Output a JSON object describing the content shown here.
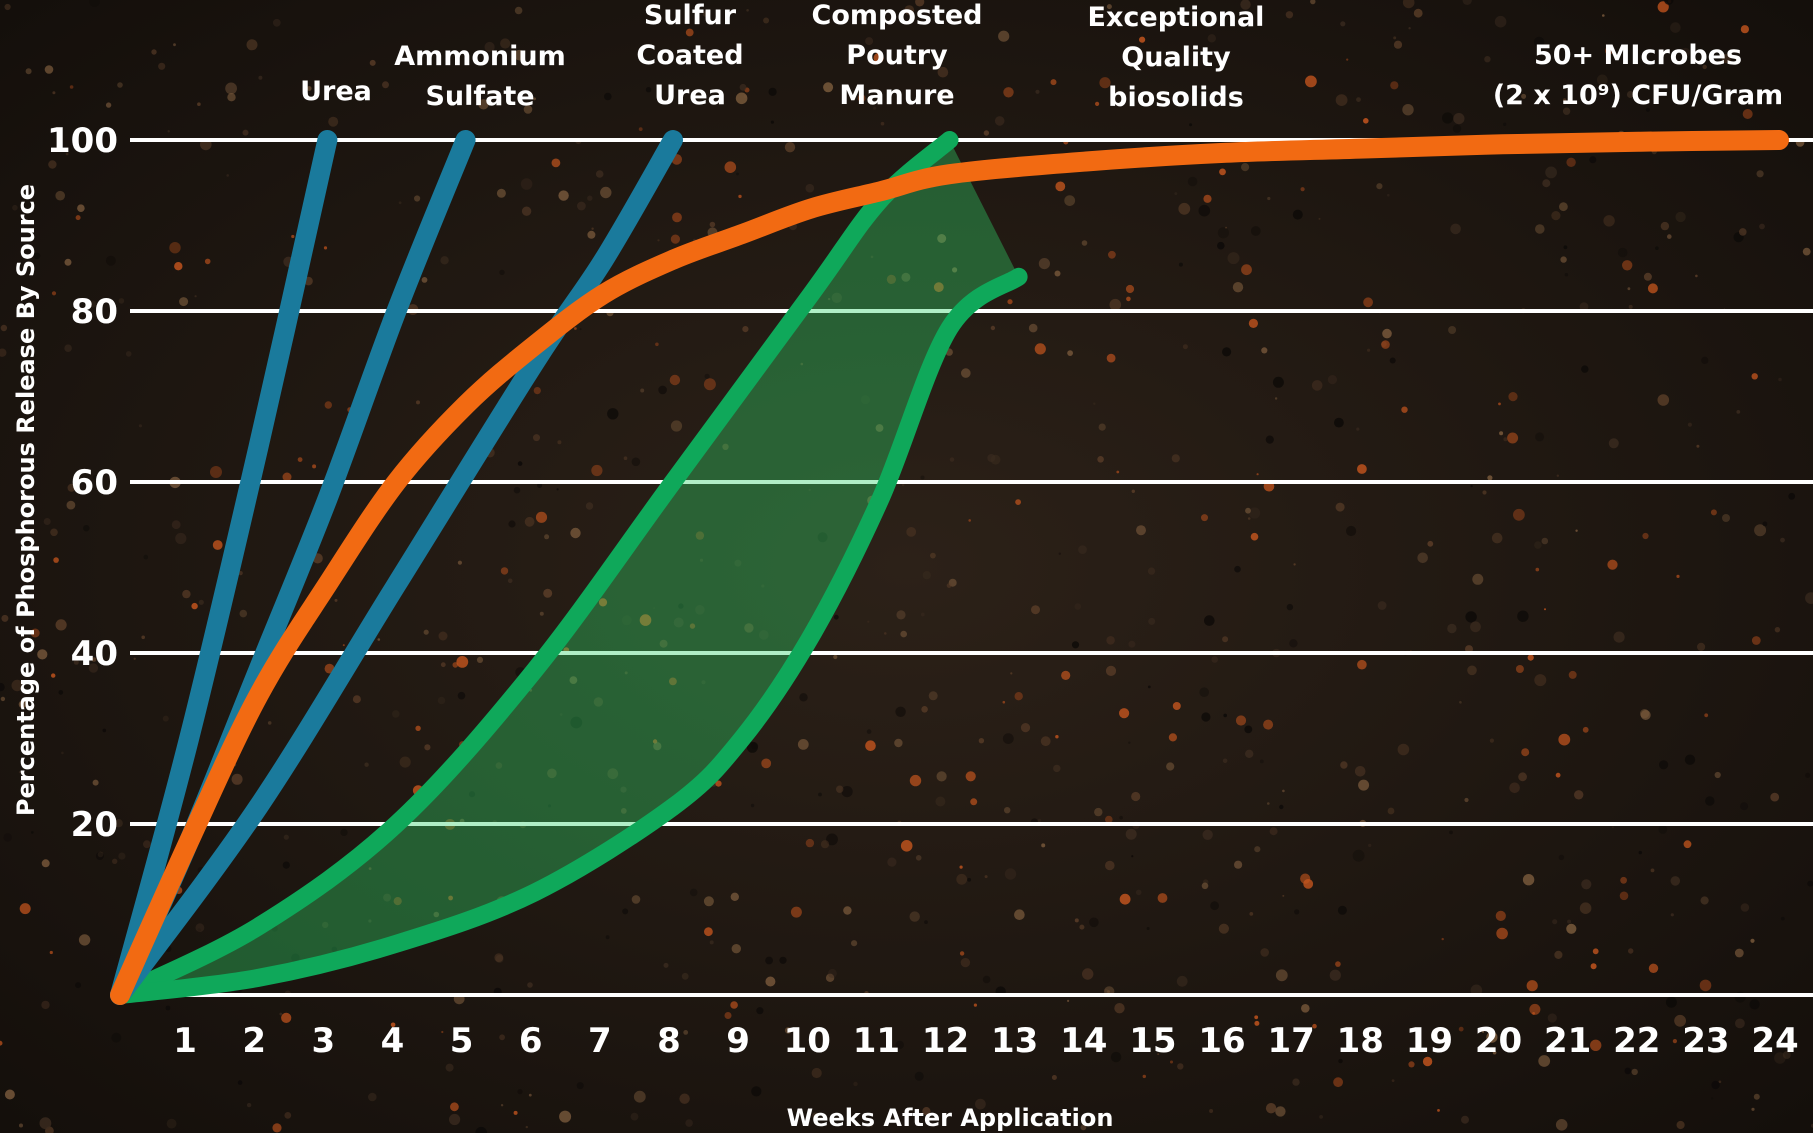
{
  "chart_data": {
    "type": "line",
    "title": "",
    "xlabel": "Weeks After Application",
    "ylabel": "Percentage of Phosphorous Release By Source",
    "xlim": [
      0,
      24
    ],
    "ylim": [
      0,
      100
    ],
    "x_ticks": [
      "1",
      "2",
      "3",
      "4",
      "5",
      "6",
      "7",
      "8",
      "9",
      "10",
      "11",
      "12",
      "13",
      "14",
      "15",
      "16",
      "17",
      "18",
      "19",
      "20",
      "21",
      "22",
      "23",
      "24"
    ],
    "y_ticks": [
      "20",
      "40",
      "60",
      "80",
      "100"
    ],
    "grid": true,
    "background": "soil photograph",
    "series": [
      {
        "name": "Urea",
        "label_lines": [
          "Urea"
        ],
        "color": "#1a7a9c",
        "x": [
          0,
          1,
          2,
          3
        ],
        "y": [
          0,
          30,
          64,
          100
        ]
      },
      {
        "name": "Ammonium Sulfate",
        "label_lines": [
          "Ammonium",
          "Sulfate"
        ],
        "color": "#1a7a9c",
        "x": [
          0,
          1,
          2,
          3,
          4,
          5
        ],
        "y": [
          0,
          18,
          38,
          58,
          80,
          100
        ]
      },
      {
        "name": "Sulfur Coated Urea",
        "label_lines": [
          "Sulfur",
          "Coated",
          "Urea"
        ],
        "color": "#1a7a9c",
        "x": [
          0,
          2,
          4,
          6,
          7,
          8
        ],
        "y": [
          0,
          22,
          48,
          74,
          86,
          100
        ]
      },
      {
        "name": "Composted Poutry Manure",
        "label_lines": [
          "Composted",
          "Poutry",
          "Manure"
        ],
        "color": "#0fa85a",
        "band": true,
        "upper": {
          "x": [
            0,
            2,
            4,
            6,
            8,
            10,
            11,
            12
          ],
          "y": [
            0,
            8,
            20,
            38,
            60,
            82,
            93,
            100
          ]
        },
        "lower": {
          "x": [
            0,
            2,
            4,
            6,
            8,
            9,
            10,
            11,
            12,
            13
          ],
          "y": [
            0,
            2,
            6,
            12,
            22,
            30,
            42,
            58,
            78,
            84
          ]
        }
      },
      {
        "name": "Exceptional Quality biosolids",
        "label_lines": [
          "Exceptional",
          "Quality",
          "biosolids"
        ],
        "color": "#0fa85a",
        "x": [],
        "y": []
      },
      {
        "name": "50+ MIcrobes (2 x 10⁹) CFU/Gram",
        "label_lines": [
          "50+ MIcrobes",
          "(2 x 10⁹) CFU/Gram"
        ],
        "color": "#f26a12",
        "x": [
          0,
          1,
          2,
          3,
          4,
          5,
          6,
          7,
          8,
          9,
          10,
          11,
          12,
          14,
          16,
          18,
          20,
          22,
          24
        ],
        "y": [
          0,
          18,
          35,
          48,
          60,
          69,
          76,
          82,
          86,
          89,
          92,
          94,
          96,
          97.5,
          98.5,
          99,
          99.5,
          99.8,
          100
        ]
      }
    ]
  },
  "colors": {
    "soil_dark": "#1e1712",
    "soil_brown": "#5a3d28",
    "soil_orange": "#c4551e",
    "gridline": "#ffffff",
    "text": "#ffffff"
  }
}
